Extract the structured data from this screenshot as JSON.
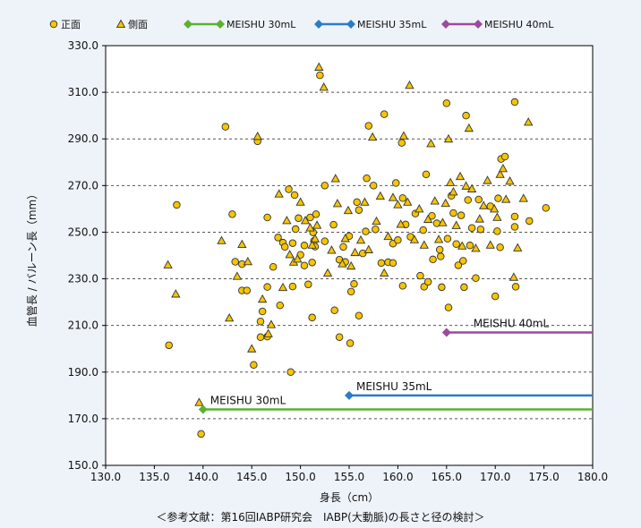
{
  "chart_data": {
    "type": "scatter",
    "xlabel": "身長（cm）",
    "ylabel": "血管長 / バルーン長（mm）",
    "xlim": [
      130,
      180
    ],
    "ylim": [
      150,
      330
    ],
    "xticks": [
      "130.0",
      "135.0",
      "140.0",
      "145.0",
      "150.0",
      "155.0",
      "160.0",
      "165.0",
      "170.0",
      "175.0",
      "180.0"
    ],
    "yticks": [
      "150.0",
      "170.0",
      "190.0",
      "210.0",
      "230.0",
      "250.0",
      "270.0",
      "290.0",
      "310.0",
      "330.0"
    ],
    "grid": "horizontal dashed",
    "legend_position": "top",
    "series": [
      {
        "name": "正面",
        "marker": "circle",
        "color": "#f6c500",
        "points": [
          [
            136.5,
            201.5
          ],
          [
            137.3,
            261.7
          ],
          [
            139.8,
            163.5
          ],
          [
            142.3,
            295.2
          ],
          [
            143.0,
            257.7
          ],
          [
            143.3,
            237.3
          ],
          [
            144.0,
            236.3
          ],
          [
            144.0,
            225.0
          ],
          [
            144.5,
            225.0
          ],
          [
            145.2,
            193.1
          ],
          [
            145.6,
            289.0
          ],
          [
            145.9,
            211.7
          ],
          [
            145.9,
            205.0
          ],
          [
            146.1,
            216.0
          ],
          [
            146.6,
            256.3
          ],
          [
            146.6,
            226.5
          ],
          [
            146.6,
            205.2
          ],
          [
            147.2,
            235.1
          ],
          [
            147.7,
            247.7
          ],
          [
            147.9,
            218.6
          ],
          [
            148.2,
            245.5
          ],
          [
            148.4,
            243.7
          ],
          [
            148.8,
            268.4
          ],
          [
            149.0,
            190.0
          ],
          [
            149.2,
            245.3
          ],
          [
            149.2,
            226.7
          ],
          [
            149.4,
            265.9
          ],
          [
            149.5,
            251.3
          ],
          [
            149.8,
            256.0
          ],
          [
            150.0,
            240.3
          ],
          [
            150.4,
            244.3
          ],
          [
            150.4,
            235.7
          ],
          [
            150.8,
            227.6
          ],
          [
            151.0,
            256.3
          ],
          [
            151.2,
            237.0
          ],
          [
            151.2,
            213.4
          ],
          [
            151.3,
            249.9
          ],
          [
            151.4,
            246.3
          ],
          [
            151.5,
            243.8
          ],
          [
            151.6,
            257.7
          ],
          [
            152.0,
            317.3
          ],
          [
            152.5,
            270.0
          ],
          [
            152.5,
            246.1
          ],
          [
            153.4,
            253.2
          ],
          [
            153.5,
            216.5
          ],
          [
            154.0,
            238.2
          ],
          [
            154.0,
            205.0
          ],
          [
            154.4,
            243.7
          ],
          [
            154.6,
            237.2
          ],
          [
            155.0,
            248.3
          ],
          [
            155.1,
            202.4
          ],
          [
            155.2,
            224.5
          ],
          [
            155.5,
            227.8
          ],
          [
            155.8,
            262.9
          ],
          [
            156.0,
            259.5
          ],
          [
            156.0,
            214.2
          ],
          [
            156.4,
            240.9
          ],
          [
            156.7,
            250.3
          ],
          [
            156.8,
            273.1
          ],
          [
            157.0,
            295.6
          ],
          [
            157.5,
            270.0
          ],
          [
            157.7,
            251.2
          ],
          [
            158.3,
            236.8
          ],
          [
            158.6,
            300.6
          ],
          [
            159.0,
            237.1
          ],
          [
            159.5,
            245.1
          ],
          [
            159.5,
            236.8
          ],
          [
            159.8,
            271.1
          ],
          [
            160.0,
            246.6
          ],
          [
            160.4,
            288.3
          ],
          [
            160.5,
            264.6
          ],
          [
            160.5,
            227.0
          ],
          [
            160.8,
            253.3
          ],
          [
            161.3,
            248.0
          ],
          [
            161.8,
            258.0
          ],
          [
            162.3,
            231.3
          ],
          [
            162.6,
            250.9
          ],
          [
            162.7,
            226.6
          ],
          [
            162.9,
            274.8
          ],
          [
            163.1,
            228.7
          ],
          [
            163.5,
            257.0
          ],
          [
            163.6,
            238.3
          ],
          [
            164.0,
            253.8
          ],
          [
            164.3,
            242.5
          ],
          [
            164.4,
            239.6
          ],
          [
            164.5,
            226.4
          ],
          [
            165.0,
            305.3
          ],
          [
            165.1,
            247.2
          ],
          [
            165.2,
            217.7
          ],
          [
            165.5,
            265.6
          ],
          [
            165.7,
            258.2
          ],
          [
            166.0,
            244.9
          ],
          [
            166.2,
            235.8
          ],
          [
            166.5,
            257.2
          ],
          [
            166.7,
            237.7
          ],
          [
            166.8,
            226.4
          ],
          [
            167.0,
            300.0
          ],
          [
            167.2,
            263.8
          ],
          [
            167.4,
            244.3
          ],
          [
            167.6,
            251.8
          ],
          [
            168.0,
            230.3
          ],
          [
            168.3,
            264.0
          ],
          [
            168.5,
            251.2
          ],
          [
            169.5,
            261.1
          ],
          [
            170.0,
            222.5
          ],
          [
            170.2,
            250.4
          ],
          [
            170.3,
            264.5
          ],
          [
            170.5,
            243.5
          ],
          [
            170.6,
            281.4
          ],
          [
            171.0,
            282.4
          ],
          [
            172.0,
            305.8
          ],
          [
            172.0,
            256.7
          ],
          [
            172.0,
            252.3
          ],
          [
            172.1,
            226.6
          ],
          [
            173.5,
            254.8
          ],
          [
            175.2,
            260.4
          ]
        ]
      },
      {
        "name": "側面",
        "marker": "triangle",
        "color": "#f6c500",
        "points": [
          [
            136.4,
            236.0
          ],
          [
            137.2,
            223.5
          ],
          [
            139.6,
            177.0
          ],
          [
            141.9,
            246.4
          ],
          [
            142.7,
            213.2
          ],
          [
            143.5,
            231.1
          ],
          [
            144.0,
            244.8
          ],
          [
            144.6,
            237.4
          ],
          [
            145.0,
            200.0
          ],
          [
            145.6,
            291.1
          ],
          [
            146.1,
            221.3
          ],
          [
            146.7,
            206.5
          ],
          [
            147.0,
            210.4
          ],
          [
            147.8,
            266.4
          ],
          [
            148.2,
            226.3
          ],
          [
            148.6,
            255.0
          ],
          [
            148.9,
            240.4
          ],
          [
            149.3,
            237.2
          ],
          [
            149.7,
            238.5
          ],
          [
            150.0,
            262.9
          ],
          [
            150.5,
            255.0
          ],
          [
            151.0,
            251.9
          ],
          [
            151.2,
            244.5
          ],
          [
            151.5,
            247.2
          ],
          [
            151.7,
            253.0
          ],
          [
            151.9,
            320.8
          ],
          [
            152.4,
            312.2
          ],
          [
            152.8,
            232.5
          ],
          [
            153.2,
            242.3
          ],
          [
            153.6,
            273.0
          ],
          [
            153.8,
            262.3
          ],
          [
            154.3,
            236.5
          ],
          [
            154.6,
            247.3
          ],
          [
            154.9,
            259.3
          ],
          [
            155.2,
            235.5
          ],
          [
            155.6,
            241.3
          ],
          [
            156.2,
            246.6
          ],
          [
            156.6,
            262.9
          ],
          [
            157.0,
            242.5
          ],
          [
            157.4,
            290.8
          ],
          [
            157.8,
            254.7
          ],
          [
            158.2,
            265.5
          ],
          [
            158.6,
            232.5
          ],
          [
            159.0,
            248.2
          ],
          [
            159.5,
            264.9
          ],
          [
            160.0,
            261.8
          ],
          [
            160.3,
            253.4
          ],
          [
            160.6,
            291.3
          ],
          [
            161.0,
            262.9
          ],
          [
            161.2,
            313.0
          ],
          [
            161.7,
            246.8
          ],
          [
            162.2,
            260.0
          ],
          [
            162.7,
            244.5
          ],
          [
            163.1,
            255.5
          ],
          [
            163.4,
            288.0
          ],
          [
            163.8,
            263.4
          ],
          [
            164.2,
            246.9
          ],
          [
            164.6,
            254.1
          ],
          [
            164.9,
            262.4
          ],
          [
            165.2,
            290.0
          ],
          [
            165.4,
            271.3
          ],
          [
            165.7,
            267.3
          ],
          [
            166.0,
            252.9
          ],
          [
            166.4,
            273.9
          ],
          [
            166.6,
            244.1
          ],
          [
            167.0,
            269.8
          ],
          [
            167.3,
            294.6
          ],
          [
            167.6,
            268.6
          ],
          [
            168.0,
            243.1
          ],
          [
            168.4,
            255.7
          ],
          [
            168.8,
            261.4
          ],
          [
            169.2,
            272.2
          ],
          [
            169.5,
            244.5
          ],
          [
            169.9,
            260.0
          ],
          [
            170.2,
            256.4
          ],
          [
            170.5,
            274.8
          ],
          [
            170.8,
            277.3
          ],
          [
            171.1,
            264.1
          ],
          [
            171.5,
            271.9
          ],
          [
            171.9,
            230.7
          ],
          [
            172.3,
            243.3
          ],
          [
            172.9,
            264.5
          ],
          [
            173.4,
            297.2
          ]
        ]
      },
      {
        "name": "MEISHU 30mL",
        "marker": "line",
        "color": "#5ab230",
        "label": "MEISHU  30mL",
        "segment": [
          [
            140,
            174
          ],
          [
            180,
            174
          ]
        ]
      },
      {
        "name": "MEISHU 35mL",
        "marker": "line",
        "color": "#2a7cc7",
        "label": "MEISHU  35mL",
        "segment": [
          [
            155,
            180
          ],
          [
            180,
            180
          ]
        ]
      },
      {
        "name": "MEISHU 40mL",
        "marker": "line",
        "color": "#9b4a9e",
        "label": "MEISHU  40mL",
        "segment": [
          [
            165,
            207
          ],
          [
            180,
            207
          ]
        ]
      }
    ]
  },
  "caption": "＜参考文献：第16回IABP研究会　IABP(大動脈)の長さと径の検討＞"
}
